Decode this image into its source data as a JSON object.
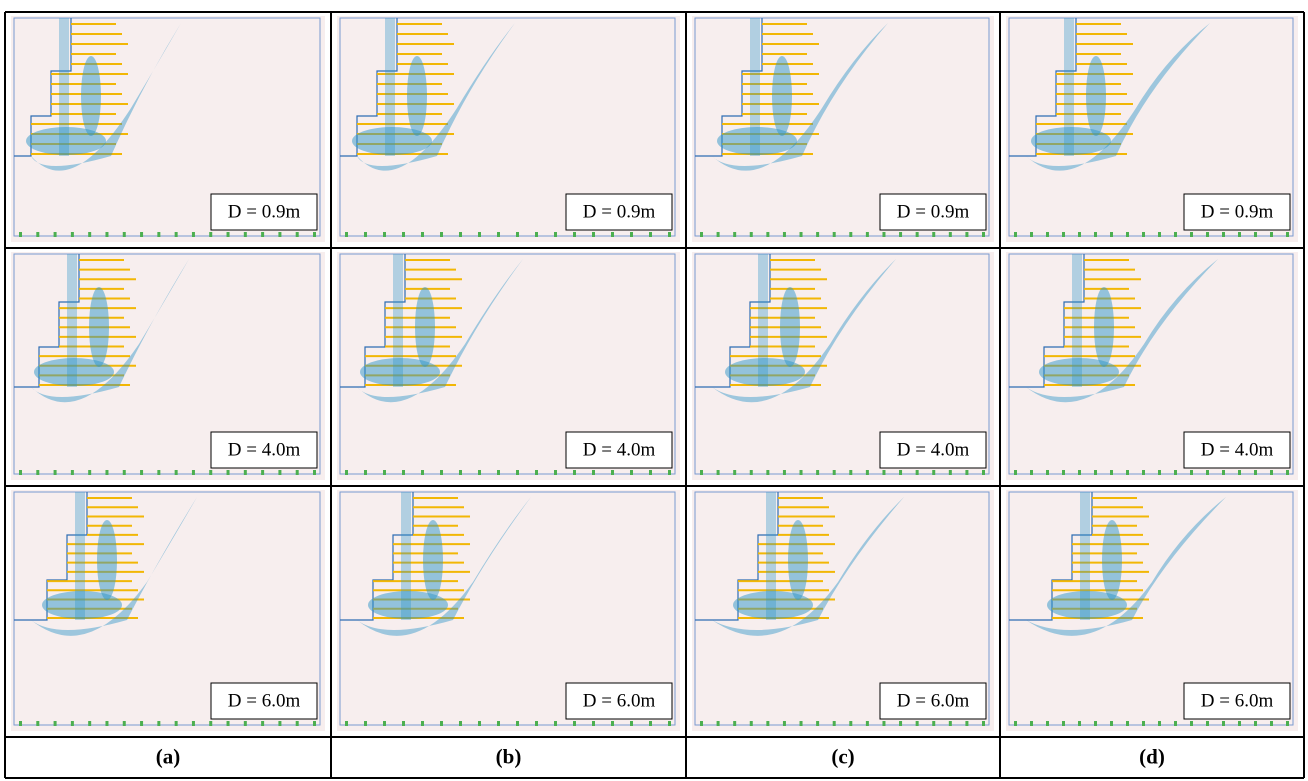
{
  "panels": [
    [
      "D = 0.9m",
      "D = 0.9m",
      "D = 0.9m",
      "D = 0.9m"
    ],
    [
      "D = 4.0m",
      "D = 4.0m",
      "D = 4.0m",
      "D = 4.0m"
    ],
    [
      "D = 6.0m",
      "D = 6.0m",
      "D = 6.0m",
      "D = 6.0m"
    ]
  ],
  "column_labels": [
    "(a)",
    "(b)",
    "(c)",
    "(d)"
  ]
}
